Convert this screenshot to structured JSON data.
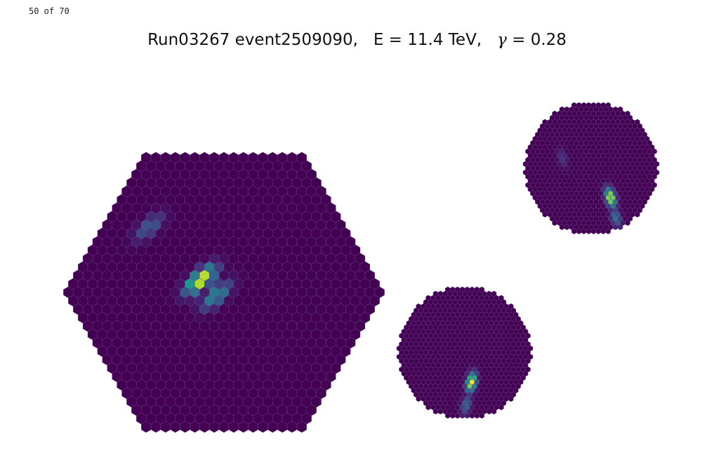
{
  "counter": "50 of 70",
  "title_main": "Run03267 event2509090,   E = 11.4 TeV,   ",
  "title_gamma_symbol": "γ",
  "title_gamma_value": " = 0.28",
  "colors": {
    "background_pixel": "#440154",
    "pixel_edge": "#6a4a86",
    "colormap": [
      "#440154",
      "#472d7b",
      "#3b528b",
      "#2c728e",
      "#21918c",
      "#28ae80",
      "#5ec962",
      "#addc30",
      "#fde725"
    ]
  },
  "chart_data": [
    {
      "type": "heatmap",
      "name": "camera-hexagonal",
      "camera_shape": "hexagon",
      "signal": [
        {
          "u": -0.15,
          "v": -0.08,
          "intensity": 1.0
        },
        {
          "u": -0.05,
          "v": 0.02,
          "intensity": 0.5
        },
        {
          "u": -0.48,
          "v": -0.42,
          "intensity": 0.3
        }
      ]
    },
    {
      "type": "heatmap",
      "name": "camera-circular-small",
      "camera_shape": "circle",
      "signal": [
        {
          "u": 0.1,
          "v": 0.45,
          "intensity": 1.0
        },
        {
          "u": 0.02,
          "v": 0.8,
          "intensity": 0.35
        }
      ]
    },
    {
      "type": "heatmap",
      "name": "camera-circular-top",
      "camera_shape": "circle",
      "signal": [
        {
          "u": 0.29,
          "v": 0.44,
          "intensity": 1.0
        },
        {
          "u": 0.37,
          "v": 0.74,
          "intensity": 0.4
        },
        {
          "u": -0.43,
          "v": -0.15,
          "intensity": 0.15
        }
      ]
    }
  ]
}
